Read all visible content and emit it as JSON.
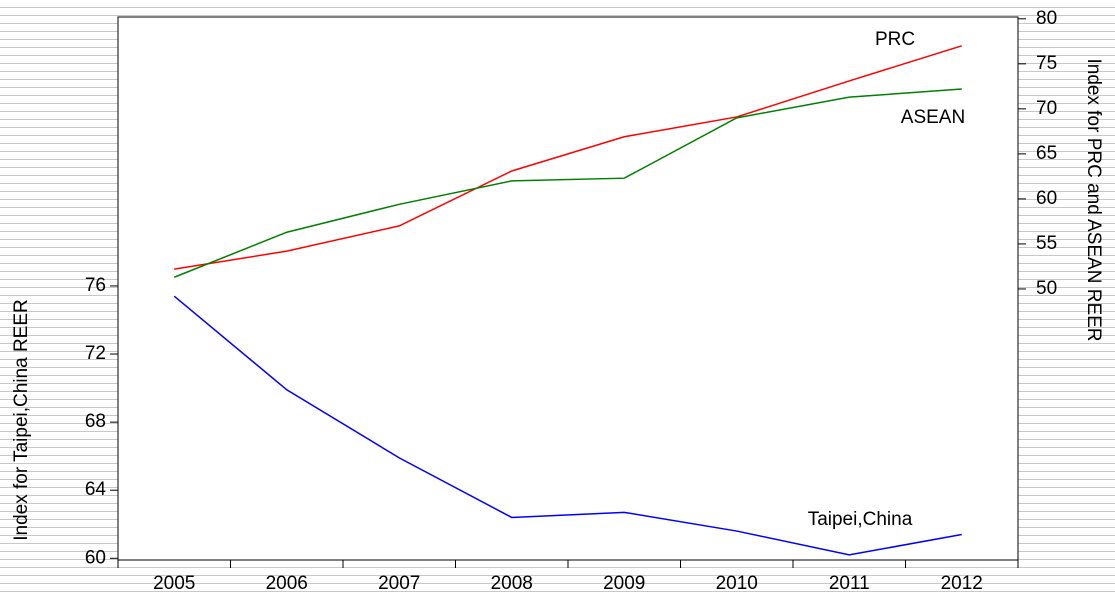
{
  "chart_data": {
    "type": "line",
    "ylabel": "Index for Taipei,China REER",
    "y2label": "Index for PRC and ASEAN REER",
    "categories": [
      "2005",
      "2006",
      "2007",
      "2008",
      "2009",
      "2010",
      "2011",
      "2012"
    ],
    "series": [
      {
        "name": "PRC",
        "color": "#ff0000",
        "axis": "y2",
        "values": [
          52.2,
          54.2,
          57.0,
          63.1,
          66.9,
          69.1,
          73.1,
          77.0
        ]
      },
      {
        "name": "ASEAN",
        "color": "#008000",
        "axis": "y2",
        "values": [
          51.3,
          56.3,
          59.4,
          62.0,
          62.3,
          69.0,
          71.3,
          72.2
        ]
      },
      {
        "name": "Taipei,China",
        "color": "#0000ff",
        "values": [
          75.4,
          69.9,
          65.9,
          62.4,
          62.7,
          61.6,
          60.2,
          61.4
        ]
      }
    ],
    "ylim": [
      59.9,
      91.8
    ],
    "yticks": [
      60,
      64,
      68,
      72,
      76
    ],
    "y2lim": [
      19.9,
      80.2
    ],
    "y2ticks": [
      50,
      55,
      60,
      65,
      70,
      75,
      80
    ]
  }
}
